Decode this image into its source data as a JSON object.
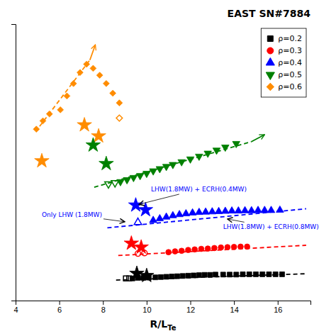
{
  "chart_data": {
    "type": "scatter",
    "title": "EAST SN#7884",
    "x_label": "R/L",
    "x_label_subscript": "Te",
    "xlim": [
      4,
      17.5
    ],
    "xticks": [
      4,
      6,
      8,
      10,
      12,
      14,
      16
    ],
    "ylim": [
      0,
      1.0
    ],
    "yticks": [],
    "tick_labels": "x",
    "legend": "upper right",
    "legend_entries": [
      {
        "name": "ρ=0.2",
        "color": "#000000",
        "marker": "square"
      },
      {
        "name": "ρ=0.3",
        "color": "#ff0000",
        "marker": "circle"
      },
      {
        "name": "ρ=0.4",
        "color": "#0000ff",
        "marker": "triangle-up"
      },
      {
        "name": "ρ=0.5",
        "color": "#008000",
        "marker": "triangle-down"
      },
      {
        "name": "ρ=0.6",
        "color": "#ff8c00",
        "marker": "diamond"
      }
    ],
    "series": [
      {
        "type": "scatter",
        "color": "#ff8c00",
        "marker": "diamond",
        "x": [
          6.05,
          6.35,
          6.65,
          6.95,
          7.25,
          7.55,
          7.85,
          8.15,
          8.45,
          8.75
        ],
        "values": [
          0.69,
          0.74,
          0.785,
          0.825,
          0.855,
          0.84,
          0.815,
          0.785,
          0.75,
          0.715
        ]
      },
      {
        "type": "scatter",
        "color": "#ff8c00",
        "marker": "diamond",
        "x": [
          4.95,
          5.25,
          5.55
        ],
        "values": [
          0.62,
          0.65,
          0.675
        ]
      },
      {
        "type": "scatter",
        "color": "#ff8c00",
        "marker": "diamond-open",
        "x": [
          8.75
        ],
        "values": [
          0.66
        ]
      },
      {
        "type": "line",
        "color": "#ff8c00",
        "line_style": "dashed",
        "x": [
          5.1,
          7.4
        ],
        "values": [
          0.63,
          0.87
        ]
      },
      {
        "type": "scatter",
        "color": "#008000",
        "marker": "triangle-down",
        "x": [
          8.8,
          9.1,
          9.4,
          9.7,
          10.0,
          10.3,
          10.6,
          10.9,
          11.2,
          11.6,
          12.0,
          12.4,
          12.8,
          13.2,
          13.6,
          14.1
        ],
        "values": [
          0.43,
          0.437,
          0.445,
          0.452,
          0.46,
          0.469,
          0.477,
          0.485,
          0.492,
          0.502,
          0.512,
          0.522,
          0.533,
          0.544,
          0.555,
          0.568
        ]
      },
      {
        "type": "scatter",
        "color": "#008000",
        "marker": "triangle-down-open",
        "x": [
          8.25,
          8.55
        ],
        "values": [
          0.422,
          0.426
        ]
      },
      {
        "type": "line",
        "color": "#008000",
        "line_style": "dashed",
        "x": [
          7.6,
          14.8
        ],
        "values": [
          0.41,
          0.575
        ]
      },
      {
        "type": "scatter",
        "color": "#0000ff",
        "marker": "triangle-up",
        "x": [
          10.3,
          10.6,
          10.9,
          11.2,
          11.5,
          11.8,
          12.1,
          12.4,
          12.7,
          13.0,
          13.3,
          13.6,
          13.9,
          14.2,
          14.5,
          14.8,
          15.1,
          15.4,
          15.7,
          16.1
        ],
        "values": [
          0.29,
          0.296,
          0.302,
          0.307,
          0.311,
          0.314,
          0.317,
          0.319,
          0.32,
          0.321,
          0.322,
          0.323,
          0.324,
          0.324,
          0.325,
          0.325,
          0.326,
          0.326,
          0.326,
          0.327
        ]
      },
      {
        "type": "scatter",
        "color": "#0000ff",
        "marker": "triangle-up-open",
        "x": [
          9.6
        ],
        "values": [
          0.283
        ]
      },
      {
        "type": "line",
        "color": "#0000ff",
        "line_style": "dashed",
        "x": [
          8.2,
          17.3
        ],
        "values": [
          0.263,
          0.332
        ]
      },
      {
        "type": "scatter",
        "color": "#ff0000",
        "marker": "circle",
        "x": [
          11.0,
          11.3,
          11.6,
          11.9,
          12.2,
          12.5,
          12.8,
          13.1,
          13.4,
          13.7,
          14.0,
          14.3,
          14.6
        ],
        "values": [
          0.175,
          0.178,
          0.18,
          0.183,
          0.185,
          0.187,
          0.188,
          0.19,
          0.192,
          0.193,
          0.194,
          0.195,
          0.195
        ]
      },
      {
        "type": "scatter",
        "color": "#ff0000",
        "marker": "circle-open",
        "x": [
          9.6,
          9.9
        ],
        "values": [
          0.17,
          0.172
        ]
      },
      {
        "type": "line",
        "color": "#ff0000",
        "line_style": "dashed",
        "x": [
          8.7,
          17.3
        ],
        "values": [
          0.163,
          0.2
        ]
      },
      {
        "type": "scatter",
        "color": "#000000",
        "marker": "square",
        "x": [
          9.35,
          9.6,
          9.85,
          10.1,
          10.4,
          10.65,
          10.9,
          11.15,
          11.4,
          11.65,
          11.9,
          12.15,
          12.4,
          12.65,
          12.9,
          13.15,
          13.5,
          13.8,
          14.1,
          14.4,
          14.7,
          15.0,
          15.3,
          15.6,
          15.9,
          16.2
        ],
        "values": [
          0.08,
          0.082,
          0.082,
          0.083,
          0.084,
          0.085,
          0.086,
          0.087,
          0.088,
          0.089,
          0.09,
          0.091,
          0.092,
          0.093,
          0.093,
          0.094,
          0.094,
          0.094,
          0.094,
          0.095,
          0.095,
          0.095,
          0.095,
          0.095,
          0.095,
          0.095
        ]
      },
      {
        "type": "scatter",
        "color": "#000000",
        "marker": "square-open",
        "x": [
          9.05,
          9.2
        ],
        "values": [
          0.08,
          0.08
        ]
      },
      {
        "type": "line",
        "color": "#000000",
        "line_style": "dashed",
        "x": [
          8.6,
          17.3
        ],
        "values": [
          0.074,
          0.097
        ]
      },
      {
        "type": "scatter",
        "color": "#ff8c00",
        "marker": "star",
        "x": [
          5.2,
          7.15,
          7.8
        ],
        "values": [
          0.505,
          0.635,
          0.595
        ]
      },
      {
        "type": "scatter",
        "color": "#008000",
        "marker": "star",
        "x": [
          7.55,
          8.15
        ],
        "values": [
          0.562,
          0.495
        ]
      },
      {
        "type": "scatter",
        "color": "#0000ff",
        "marker": "star",
        "x": [
          9.5,
          9.95
        ],
        "values": [
          0.345,
          0.328
        ]
      },
      {
        "type": "scatter",
        "color": "#ff0000",
        "marker": "star",
        "x": [
          9.3,
          9.75
        ],
        "values": [
          0.207,
          0.193
        ]
      },
      {
        "type": "scatter",
        "color": "#000000",
        "marker": "star",
        "x": [
          9.55,
          10.0
        ],
        "values": [
          0.098,
          0.09
        ]
      }
    ],
    "arrows": [
      {
        "color": "#ff8c00",
        "x": [
          7.4,
          7.65
        ],
        "values": [
          0.87,
          0.925
        ]
      },
      {
        "color": "#008000",
        "x": [
          14.8,
          15.4
        ],
        "values": [
          0.575,
          0.6
        ]
      }
    ],
    "annotations": [
      {
        "text": "Only LHW (1.8MW)",
        "color": "#0000ff",
        "x": 5.2,
        "y": 0.303,
        "arrow_x": 9.0,
        "arrow_y": 0.285
      },
      {
        "text": "LHW(1.8MW) + ECRH(0.4MW)",
        "color": "#0000ff",
        "x": 10.2,
        "y": 0.395,
        "arrow_x": 9.65,
        "arrow_y": 0.348
      },
      {
        "text": "LHW(1.8MW) + ECRH(0.8MW)",
        "color": "#0000ff",
        "x": 13.5,
        "y": 0.258,
        "arrow_x": 13.7,
        "arrow_y": 0.295
      }
    ]
  }
}
